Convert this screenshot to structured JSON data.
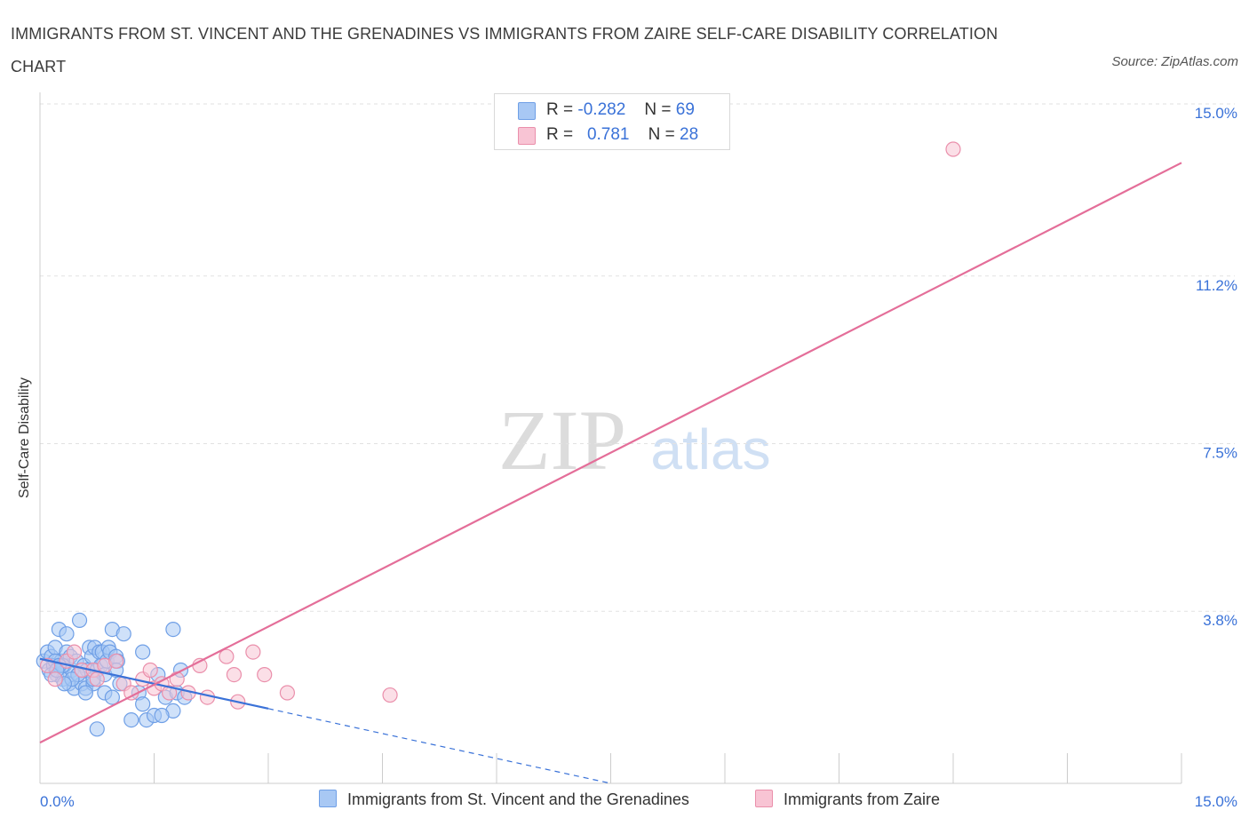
{
  "title": "IMMIGRANTS FROM ST. VINCENT AND THE GRENADINES VS IMMIGRANTS FROM ZAIRE SELF-CARE DISABILITY CORRELATION CHART",
  "source": "Source: ZipAtlas.com",
  "watermark": {
    "zip": "ZIP",
    "atlas": "atlas"
  },
  "legend": {
    "rows": [
      {
        "r_label": "R =",
        "r_value": "-0.282",
        "n_label": "N =",
        "n_value": "69",
        "color": "#a8c8f4",
        "border": "#6f9fe6"
      },
      {
        "r_label": "R =",
        "r_value": "0.781",
        "n_label": "N =",
        "n_value": "28",
        "color": "#f8c4d4",
        "border": "#ea8fab"
      }
    ]
  },
  "bottom_legend": [
    {
      "label": "Immigrants from St. Vincent and the Grenadines",
      "color": "#a8c8f4",
      "border": "#6f9fe6"
    },
    {
      "label": "Immigrants from Zaire",
      "color": "#f8c4d4",
      "border": "#ea8fab"
    }
  ],
  "chart_data": {
    "type": "scatter",
    "title": "IMMIGRANTS FROM ST. VINCENT AND THE GRENADINES VS IMMIGRANTS FROM ZAIRE SELF-CARE DISABILITY CORRELATION CHART",
    "xlabel": "",
    "ylabel": "Self-Care Disability",
    "xlim": [
      0,
      15
    ],
    "ylim": [
      0,
      15
    ],
    "x_tick_labels": [
      {
        "value": 0,
        "label": "0.0%"
      },
      {
        "value": 15,
        "label": "15.0%"
      }
    ],
    "y_tick_labels": [
      {
        "value": 3.8,
        "label": "3.8%"
      },
      {
        "value": 7.5,
        "label": "7.5%"
      },
      {
        "value": 11.2,
        "label": "11.2%"
      },
      {
        "value": 15.0,
        "label": "15.0%"
      }
    ],
    "grid": "horizontal dashed",
    "series": [
      {
        "name": "Immigrants from St. Vincent and the Grenadines",
        "color": "#6f9fe6",
        "fill": "#a8c8f4",
        "R": -0.282,
        "N": 69,
        "trend_solid": [
          [
            0.0,
            2.75
          ],
          [
            3.0,
            1.65
          ]
        ],
        "trend_dashed": [
          [
            3.0,
            1.65
          ],
          [
            7.5,
            0.0
          ]
        ],
        "points": [
          [
            0.05,
            2.7
          ],
          [
            0.1,
            2.9
          ],
          [
            0.12,
            2.5
          ],
          [
            0.15,
            2.8
          ],
          [
            0.18,
            2.6
          ],
          [
            0.2,
            3.0
          ],
          [
            0.22,
            2.4
          ],
          [
            0.25,
            3.4
          ],
          [
            0.28,
            2.7
          ],
          [
            0.3,
            2.3
          ],
          [
            0.32,
            2.6
          ],
          [
            0.35,
            2.9
          ],
          [
            0.38,
            2.2
          ],
          [
            0.4,
            2.8
          ],
          [
            0.42,
            2.5
          ],
          [
            0.45,
            2.1
          ],
          [
            0.48,
            2.7
          ],
          [
            0.5,
            2.4
          ],
          [
            0.52,
            3.6
          ],
          [
            0.55,
            2.2
          ],
          [
            0.58,
            2.6
          ],
          [
            0.6,
            2.1
          ],
          [
            0.62,
            2.5
          ],
          [
            0.65,
            3.0
          ],
          [
            0.68,
            2.8
          ],
          [
            0.7,
            2.2
          ],
          [
            0.72,
            3.0
          ],
          [
            0.75,
            2.5
          ],
          [
            0.78,
            2.9
          ],
          [
            0.8,
            2.6
          ],
          [
            0.82,
            2.9
          ],
          [
            0.85,
            2.4
          ],
          [
            0.88,
            2.7
          ],
          [
            0.9,
            3.0
          ],
          [
            0.92,
            2.9
          ],
          [
            0.95,
            3.4
          ],
          [
            1.0,
            2.8
          ],
          [
            0.2,
            2.7
          ],
          [
            0.3,
            2.6
          ],
          [
            0.35,
            3.3
          ],
          [
            0.5,
            2.4
          ],
          [
            0.6,
            2.0
          ],
          [
            0.7,
            2.3
          ],
          [
            0.75,
            1.2
          ],
          [
            0.85,
            2.0
          ],
          [
            0.95,
            1.9
          ],
          [
            1.05,
            2.2
          ],
          [
            0.25,
            2.6
          ],
          [
            0.15,
            2.4
          ],
          [
            1.2,
            1.4
          ],
          [
            1.3,
            2.0
          ],
          [
            1.35,
            1.75
          ],
          [
            1.4,
            1.4
          ],
          [
            1.5,
            1.5
          ],
          [
            1.55,
            2.4
          ],
          [
            1.65,
            1.9
          ],
          [
            1.75,
            3.4
          ],
          [
            1.8,
            2.0
          ],
          [
            1.85,
            2.5
          ],
          [
            1.9,
            1.9
          ],
          [
            1.35,
            2.9
          ],
          [
            1.02,
            2.7
          ],
          [
            1.0,
            2.5
          ],
          [
            1.75,
            1.6
          ],
          [
            0.42,
            2.3
          ],
          [
            0.32,
            2.2
          ],
          [
            0.22,
            2.5
          ],
          [
            1.6,
            1.5
          ],
          [
            1.1,
            3.3
          ]
        ]
      },
      {
        "name": "Immigrants from Zaire",
        "color": "#ea8fab",
        "fill": "#f8c4d4",
        "R": 0.781,
        "N": 28,
        "trend_solid": [
          [
            0.0,
            0.9
          ],
          [
            15.0,
            13.7
          ]
        ],
        "points": [
          [
            0.1,
            2.6
          ],
          [
            0.2,
            2.3
          ],
          [
            0.35,
            2.7
          ],
          [
            0.45,
            2.9
          ],
          [
            0.55,
            2.5
          ],
          [
            0.7,
            2.5
          ],
          [
            0.75,
            2.3
          ],
          [
            0.85,
            2.6
          ],
          [
            1.0,
            2.7
          ],
          [
            1.1,
            2.2
          ],
          [
            1.2,
            2.0
          ],
          [
            1.35,
            2.3
          ],
          [
            1.45,
            2.5
          ],
          [
            1.5,
            2.1
          ],
          [
            1.6,
            2.2
          ],
          [
            1.7,
            2.0
          ],
          [
            1.8,
            2.3
          ],
          [
            1.95,
            2.0
          ],
          [
            2.1,
            2.6
          ],
          [
            2.2,
            1.9
          ],
          [
            2.45,
            2.8
          ],
          [
            2.55,
            2.4
          ],
          [
            2.6,
            1.8
          ],
          [
            2.8,
            2.9
          ],
          [
            2.95,
            2.4
          ],
          [
            3.25,
            2.0
          ],
          [
            4.6,
            1.95
          ],
          [
            12.0,
            14.0
          ]
        ]
      }
    ]
  }
}
